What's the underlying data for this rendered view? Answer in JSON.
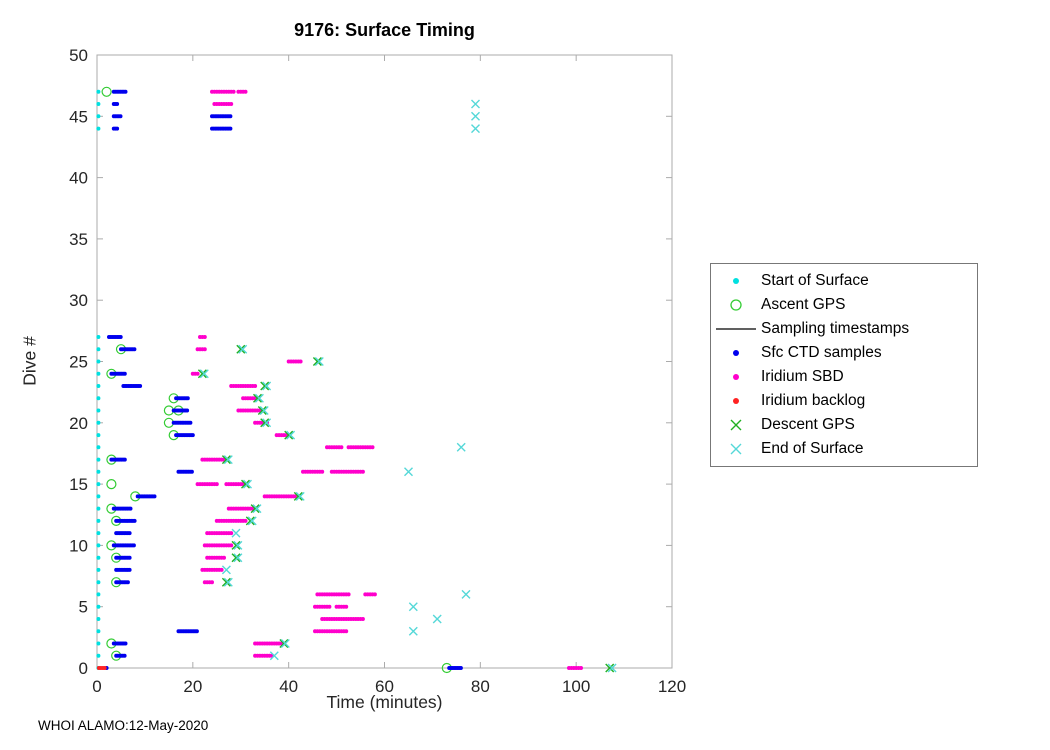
{
  "footer": "WHOI ALAMO:12-May-2020",
  "chart_data": {
    "type": "scatter",
    "title": "9176: Surface Timing",
    "xlabel": "Time (minutes)",
    "ylabel": "Dive #",
    "xlim": [
      0,
      120
    ],
    "ylim": [
      0,
      50
    ],
    "xticks": [
      0,
      20,
      40,
      60,
      80,
      100,
      120
    ],
    "yticks": [
      0,
      5,
      10,
      15,
      20,
      25,
      30,
      35,
      40,
      45,
      50
    ],
    "grid": false,
    "legend_position": "outside-right",
    "series": [
      {
        "name": "Start of Surface",
        "marker": "dot",
        "color": "#00E0E0",
        "size": 2,
        "points": [
          [
            0.3,
            0
          ],
          [
            0.3,
            1
          ],
          [
            0.3,
            2
          ],
          [
            0.3,
            3
          ],
          [
            0.3,
            4
          ],
          [
            0.3,
            5
          ],
          [
            0.3,
            6
          ],
          [
            0.3,
            7
          ],
          [
            0.3,
            8
          ],
          [
            0.3,
            9
          ],
          [
            0.3,
            10
          ],
          [
            0.3,
            11
          ],
          [
            0.3,
            12
          ],
          [
            0.3,
            13
          ],
          [
            0.3,
            14
          ],
          [
            0.3,
            15
          ],
          [
            0.3,
            16
          ],
          [
            0.3,
            17
          ],
          [
            0.3,
            18
          ],
          [
            0.3,
            19
          ],
          [
            0.3,
            20
          ],
          [
            0.3,
            21
          ],
          [
            0.3,
            22
          ],
          [
            0.3,
            23
          ],
          [
            0.3,
            24
          ],
          [
            0.3,
            25
          ],
          [
            0.3,
            26
          ],
          [
            0.3,
            27
          ],
          [
            0.3,
            44
          ],
          [
            0.3,
            45
          ],
          [
            0.3,
            46
          ],
          [
            0.3,
            47
          ]
        ]
      },
      {
        "name": "Ascent GPS",
        "marker": "circle-open",
        "color": "#33CC33",
        "points": [
          [
            73,
            0
          ],
          [
            4,
            1
          ],
          [
            3,
            2
          ],
          [
            4,
            7
          ],
          [
            4,
            9
          ],
          [
            3,
            10
          ],
          [
            4,
            12
          ],
          [
            3,
            13
          ],
          [
            8,
            14
          ],
          [
            3,
            15
          ],
          [
            3,
            17
          ],
          [
            16,
            19
          ],
          [
            15,
            20
          ],
          [
            15,
            21
          ],
          [
            17,
            21
          ],
          [
            16,
            22
          ],
          [
            3,
            24
          ],
          [
            5,
            26
          ],
          [
            2,
            47
          ]
        ]
      },
      {
        "name": "Sampling timestamps",
        "marker": "line",
        "color": "#000000",
        "points": []
      },
      {
        "name": "Sfc CTD samples",
        "marker": "dot",
        "color": "#0000EE",
        "size": 2,
        "step": 0.35,
        "points": [
          [
            2,
            0
          ]
        ],
        "runs": [
          {
            "y": 0,
            "x0": 73.5,
            "x1": 76
          },
          {
            "y": 1,
            "x0": 4,
            "x1": 6
          },
          {
            "y": 2,
            "x0": 3.5,
            "x1": 6
          },
          {
            "y": 3,
            "x0": 17,
            "x1": 21
          },
          {
            "y": 7,
            "x0": 4,
            "x1": 6.5
          },
          {
            "y": 8,
            "x0": 4,
            "x1": 7
          },
          {
            "y": 9,
            "x0": 4,
            "x1": 7
          },
          {
            "y": 10,
            "x0": 3.5,
            "x1": 8
          },
          {
            "y": 11,
            "x0": 4,
            "x1": 7
          },
          {
            "y": 12,
            "x0": 4,
            "x1": 8
          },
          {
            "y": 13,
            "x0": 3.5,
            "x1": 7
          },
          {
            "y": 14,
            "x0": 8.5,
            "x1": 12
          },
          {
            "y": 16,
            "x0": 17,
            "x1": 20
          },
          {
            "y": 17,
            "x0": 3,
            "x1": 6
          },
          {
            "y": 19,
            "x0": 16.5,
            "x1": 20
          },
          {
            "y": 20,
            "x0": 16,
            "x1": 19.5
          },
          {
            "y": 21,
            "x0": 16,
            "x1": 19
          },
          {
            "y": 22,
            "x0": 16.5,
            "x1": 19
          },
          {
            "y": 23,
            "x0": 5.5,
            "x1": 9
          },
          {
            "y": 24,
            "x0": 3,
            "x1": 6
          },
          {
            "y": 26,
            "x0": 5,
            "x1": 8
          },
          {
            "y": 27,
            "x0": 2.5,
            "x1": 5
          },
          {
            "y": 44,
            "x0": 3.5,
            "x1": 4.5
          },
          {
            "y": 45,
            "x0": 3.5,
            "x1": 5
          },
          {
            "y": 46,
            "x0": 3.5,
            "x1": 4.5
          },
          {
            "y": 47,
            "x0": 3.5,
            "x1": 6
          },
          {
            "y": 44,
            "x0": 24,
            "x1": 28
          },
          {
            "y": 45,
            "x0": 24,
            "x1": 28
          }
        ]
      },
      {
        "name": "Iridium SBD",
        "marker": "dot",
        "color": "#FF00CC",
        "size": 2,
        "step": 0.5,
        "runs": [
          {
            "y": 0,
            "x0": 98.5,
            "x1": 101
          },
          {
            "y": 1,
            "x0": 33,
            "x1": 36.5
          },
          {
            "y": 2,
            "x0": 33,
            "x1": 39
          },
          {
            "y": 3,
            "x0": 45.5,
            "x1": 52
          },
          {
            "y": 4,
            "x0": 47,
            "x1": 55.5
          },
          {
            "y": 5,
            "x0": 45.5,
            "x1": 48.5
          },
          {
            "y": 5,
            "x0": 50,
            "x1": 52
          },
          {
            "y": 6,
            "x0": 46,
            "x1": 52.5
          },
          {
            "y": 6,
            "x0": 56,
            "x1": 58
          },
          {
            "y": 7,
            "x0": 22.5,
            "x1": 24
          },
          {
            "y": 8,
            "x0": 22,
            "x1": 26
          },
          {
            "y": 9,
            "x0": 23,
            "x1": 26.5
          },
          {
            "y": 10,
            "x0": 22.5,
            "x1": 28
          },
          {
            "y": 11,
            "x0": 23,
            "x1": 28
          },
          {
            "y": 12,
            "x0": 25,
            "x1": 31
          },
          {
            "y": 13,
            "x0": 27.5,
            "x1": 32.5
          },
          {
            "y": 14,
            "x0": 35,
            "x1": 41.5
          },
          {
            "y": 15,
            "x0": 21,
            "x1": 25
          },
          {
            "y": 15,
            "x0": 27,
            "x1": 31
          },
          {
            "y": 16,
            "x0": 43,
            "x1": 47
          },
          {
            "y": 16,
            "x0": 49,
            "x1": 55.5
          },
          {
            "y": 17,
            "x0": 22,
            "x1": 26.5
          },
          {
            "y": 18,
            "x0": 48,
            "x1": 51
          },
          {
            "y": 18,
            "x0": 52.5,
            "x1": 57.5
          },
          {
            "y": 19,
            "x0": 37.5,
            "x1": 40
          },
          {
            "y": 20,
            "x0": 33,
            "x1": 35.5
          },
          {
            "y": 21,
            "x0": 29.5,
            "x1": 34
          },
          {
            "y": 22,
            "x0": 30.5,
            "x1": 33.5
          },
          {
            "y": 23,
            "x0": 28,
            "x1": 33
          },
          {
            "y": 24,
            "x0": 20,
            "x1": 21
          },
          {
            "y": 25,
            "x0": 40,
            "x1": 42.5
          },
          {
            "y": 26,
            "x0": 21,
            "x1": 22.5
          },
          {
            "y": 27,
            "x0": 21.5,
            "x1": 22.5
          },
          {
            "y": 46,
            "x0": 24.5,
            "x1": 28
          },
          {
            "y": 47,
            "x0": 24,
            "x1": 28.5
          },
          {
            "y": 47,
            "x0": 29.5,
            "x1": 31
          }
        ]
      },
      {
        "name": "Iridium backlog",
        "marker": "dot",
        "color": "#FF2222",
        "size": 2,
        "step": 0.4,
        "runs": [
          {
            "y": 0,
            "x0": 0.4,
            "x1": 1.6
          }
        ]
      },
      {
        "name": "Descent GPS",
        "marker": "x",
        "color": "#22B022",
        "size": 4,
        "points": [
          [
            107,
            0
          ],
          [
            39,
            2
          ],
          [
            27,
            7
          ],
          [
            29,
            9
          ],
          [
            29,
            10
          ],
          [
            32,
            12
          ],
          [
            33,
            13
          ],
          [
            42,
            14
          ],
          [
            31,
            15
          ],
          [
            27,
            17
          ],
          [
            40,
            19
          ],
          [
            35,
            20
          ],
          [
            34.5,
            21
          ],
          [
            33.5,
            22
          ],
          [
            35,
            23
          ],
          [
            22,
            24
          ],
          [
            46,
            25
          ],
          [
            30,
            26
          ]
        ]
      },
      {
        "name": "End of Surface",
        "marker": "x",
        "color": "#55D8D8",
        "size": 4,
        "points": [
          [
            107.5,
            0
          ],
          [
            37,
            1
          ],
          [
            39.3,
            2
          ],
          [
            66,
            3
          ],
          [
            71,
            4
          ],
          [
            66,
            5
          ],
          [
            77,
            6
          ],
          [
            27.4,
            7
          ],
          [
            27,
            8
          ],
          [
            29.4,
            9
          ],
          [
            29.4,
            10
          ],
          [
            29,
            11
          ],
          [
            32.4,
            12
          ],
          [
            33.4,
            13
          ],
          [
            42.4,
            14
          ],
          [
            31.4,
            15
          ],
          [
            65,
            16
          ],
          [
            27.4,
            17
          ],
          [
            76,
            18
          ],
          [
            40.4,
            19
          ],
          [
            35.4,
            20
          ],
          [
            34.9,
            21
          ],
          [
            33.9,
            22
          ],
          [
            35.4,
            23
          ],
          [
            22.4,
            24
          ],
          [
            46.4,
            25
          ],
          [
            30.4,
            26
          ],
          [
            79,
            44
          ],
          [
            79,
            45
          ],
          [
            79,
            46
          ]
        ]
      }
    ]
  }
}
